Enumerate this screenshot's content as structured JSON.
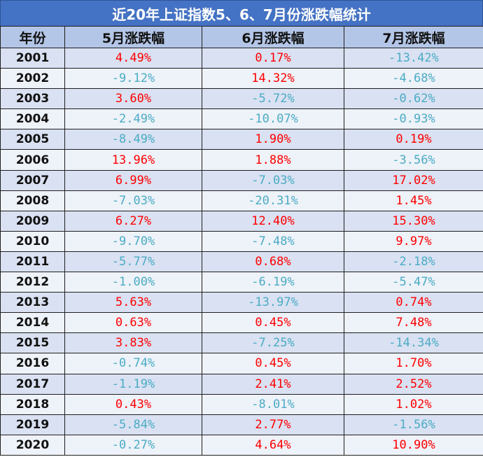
{
  "title": "近20年上证指数5、6、7月份涨跌幅统计",
  "headers": [
    "年份",
    "5月涨跌幅",
    "6月涨跌幅",
    "7月涨跌幅"
  ],
  "colors": {
    "positive": "#ff0000",
    "negative": "#4bacc6",
    "title_bg": "#4472c4",
    "header_bg": "#b4c6e7"
  },
  "rows": [
    {
      "year": "2001",
      "may": "4.49%",
      "jun": "0.17%",
      "jul": "-13.42%"
    },
    {
      "year": "2002",
      "may": "-9.12%",
      "jun": "14.32%",
      "jul": "-4.68%"
    },
    {
      "year": "2003",
      "may": "3.60%",
      "jun": "-5.72%",
      "jul": "-0.62%"
    },
    {
      "year": "2004",
      "may": "-2.49%",
      "jun": "-10.07%",
      "jul": "-0.93%"
    },
    {
      "year": "2005",
      "may": "-8.49%",
      "jun": "1.90%",
      "jul": "0.19%"
    },
    {
      "year": "2006",
      "may": "13.96%",
      "jun": "1.88%",
      "jul": "-3.56%"
    },
    {
      "year": "2007",
      "may": "6.99%",
      "jun": "-7.03%",
      "jul": "17.02%"
    },
    {
      "year": "2008",
      "may": "-7.03%",
      "jun": "-20.31%",
      "jul": "1.45%"
    },
    {
      "year": "2009",
      "may": "6.27%",
      "jun": "12.40%",
      "jul": "15.30%"
    },
    {
      "year": "2010",
      "may": "-9.70%",
      "jun": "-7.48%",
      "jul": "9.97%"
    },
    {
      "year": "2011",
      "may": "-5.77%",
      "jun": "0.68%",
      "jul": "-2.18%"
    },
    {
      "year": "2012",
      "may": "-1.00%",
      "jun": "-6.19%",
      "jul": "-5.47%"
    },
    {
      "year": "2013",
      "may": "5.63%",
      "jun": "-13.97%",
      "jul": "0.74%"
    },
    {
      "year": "2014",
      "may": "0.63%",
      "jun": "0.45%",
      "jul": "7.48%"
    },
    {
      "year": "2015",
      "may": "3.83%",
      "jun": "-7.25%",
      "jul": "-14.34%"
    },
    {
      "year": "2016",
      "may": "-0.74%",
      "jun": "0.45%",
      "jul": "1.70%"
    },
    {
      "year": "2017",
      "may": "-1.19%",
      "jun": "2.41%",
      "jul": "2.52%"
    },
    {
      "year": "2018",
      "may": "0.43%",
      "jun": "-8.01%",
      "jul": "1.02%"
    },
    {
      "year": "2019",
      "may": "-5.84%",
      "jun": "2.77%",
      "jul": "-1.56%"
    },
    {
      "year": "2020",
      "may": "-0.27%",
      "jun": "4.64%",
      "jul": "10.90%"
    }
  ]
}
